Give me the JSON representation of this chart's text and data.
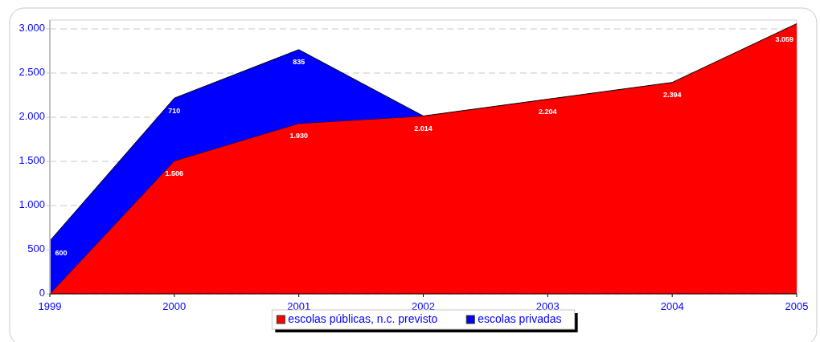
{
  "chart_data": {
    "type": "area",
    "stacked": true,
    "x": [
      1999,
      2000,
      2001,
      2002,
      2003,
      2004,
      2005
    ],
    "xlim": [
      1999,
      2005
    ],
    "xticks": [
      1999,
      2000,
      2001,
      2002,
      2003,
      2004,
      2005
    ],
    "ylim": [
      0,
      3100
    ],
    "yticks": [
      0,
      500,
      {
        "value": 1000,
        "label": "1.000"
      },
      {
        "value": 1500,
        "label": "1.500"
      },
      {
        "value": 2000,
        "label": "2.000"
      },
      {
        "value": 2500,
        "label": "2.500"
      },
      {
        "value": 3000,
        "label": "3.000"
      }
    ],
    "grid": "y",
    "legend": "bottom",
    "series": [
      {
        "name": "escolas públicas, n.c. previsto",
        "color": "#ff0000",
        "values": [
          0,
          1506,
          1930,
          2014,
          2204,
          2394,
          3059
        ],
        "value_labels": [
          null,
          "1.506",
          "1.930",
          "2.014",
          "2.204",
          "2.394",
          "3.059"
        ]
      },
      {
        "name": "escolas privadas",
        "color": "#0000ff",
        "values": [
          600,
          710,
          835,
          0,
          null,
          null,
          null
        ],
        "value_labels": [
          "600",
          "710",
          "835",
          null,
          null,
          null,
          null
        ]
      }
    ]
  }
}
